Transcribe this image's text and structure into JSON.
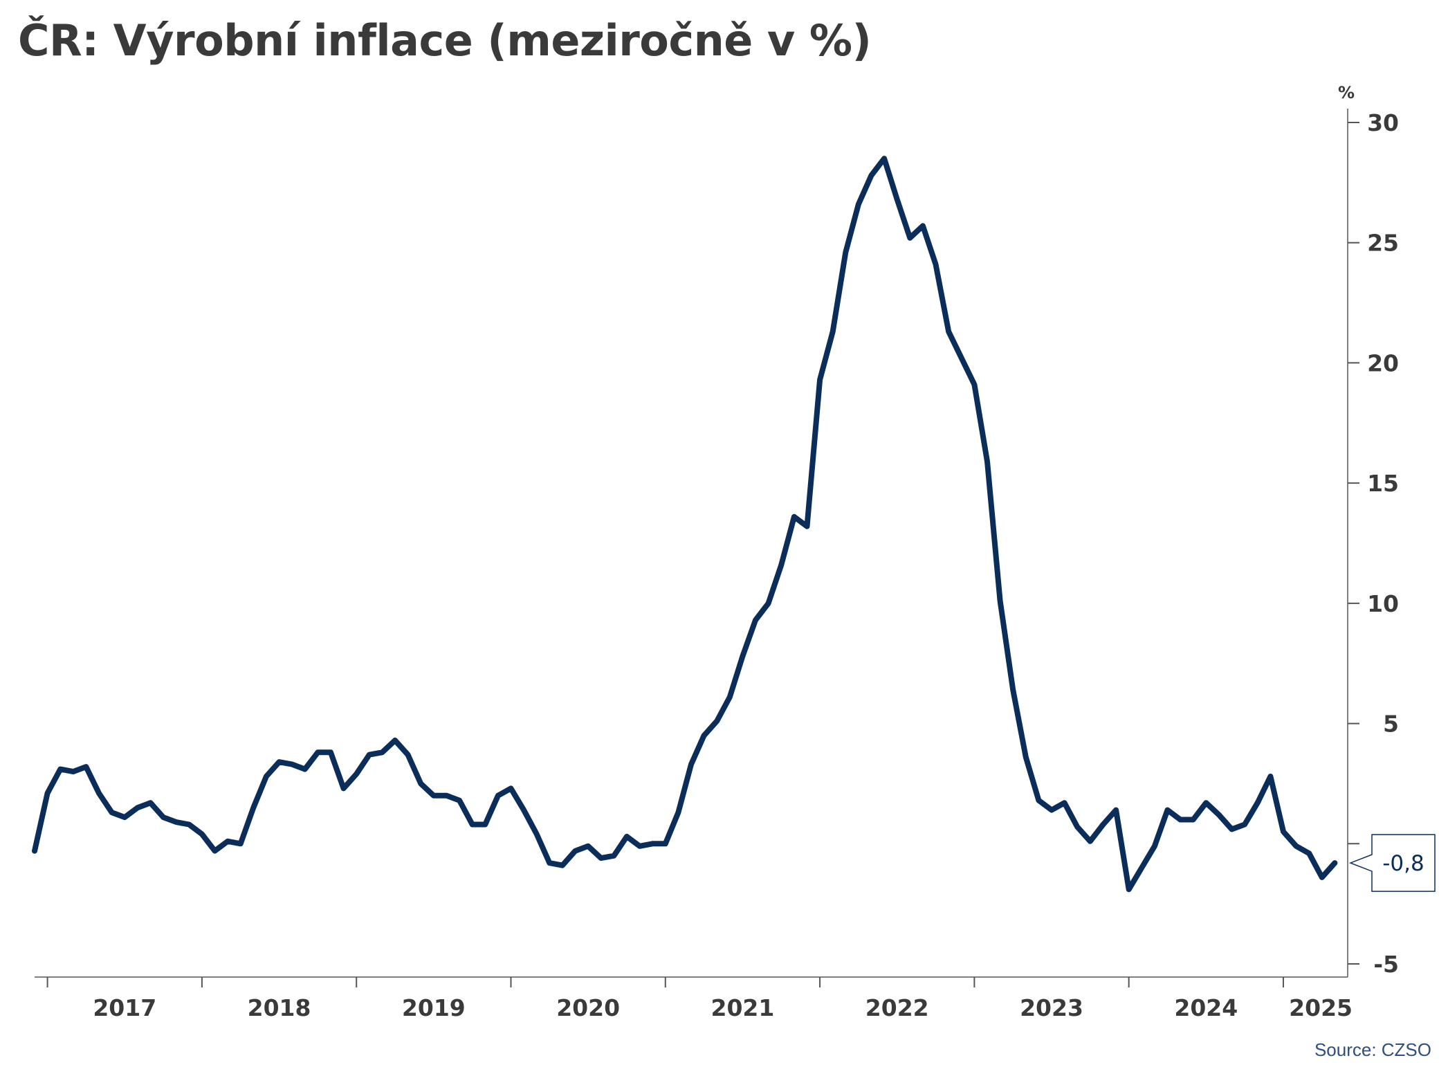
{
  "title": "ČR: Výrobní inflace (meziročně v %)",
  "source": "Source: CZSO",
  "colors": {
    "line": "#0b2d5a",
    "axis": "#555555",
    "text": "#3a3a3a",
    "source": "#2e4f7f"
  },
  "chart_data": {
    "type": "line",
    "title": "ČR: Výrobní inflace (meziročně v %)",
    "ylabel": "%",
    "xlabel": "",
    "y_axis_position": "right",
    "grid": false,
    "ylim": [
      -5,
      30
    ],
    "yticks": [
      -5,
      0,
      5,
      10,
      15,
      20,
      25,
      30
    ],
    "ytick_labels": [
      "-5",
      "0",
      "5",
      "10",
      "15",
      "20",
      "25",
      "30"
    ],
    "x_range": [
      "2016-12",
      "2025-06"
    ],
    "year_labels": [
      "2017",
      "2018",
      "2019",
      "2020",
      "2021",
      "2022",
      "2023",
      "2024",
      "2025"
    ],
    "last_value_label": "-0,8",
    "series": [
      {
        "x": [
          "2016-12",
          "2017-01",
          "2017-02",
          "2017-03",
          "2017-04",
          "2017-05",
          "2017-06",
          "2017-07",
          "2017-08",
          "2017-09",
          "2017-10",
          "2017-11",
          "2017-12",
          "2018-01",
          "2018-02",
          "2018-03",
          "2018-04",
          "2018-05",
          "2018-06",
          "2018-07",
          "2018-08",
          "2018-09",
          "2018-10",
          "2018-11",
          "2018-12",
          "2019-01",
          "2019-02",
          "2019-03",
          "2019-04",
          "2019-05",
          "2019-06",
          "2019-07",
          "2019-08",
          "2019-09",
          "2019-10",
          "2019-11",
          "2019-12",
          "2020-01",
          "2020-02",
          "2020-03",
          "2020-04",
          "2020-05",
          "2020-06",
          "2020-07",
          "2020-08",
          "2020-09",
          "2020-10",
          "2020-11",
          "2020-12",
          "2021-01",
          "2021-02",
          "2021-03",
          "2021-04",
          "2021-05",
          "2021-06",
          "2021-07",
          "2021-08",
          "2021-09",
          "2021-10",
          "2021-11",
          "2021-12",
          "2022-01",
          "2022-02",
          "2022-03",
          "2022-04",
          "2022-05",
          "2022-06",
          "2022-07",
          "2022-08",
          "2022-09",
          "2022-10",
          "2022-11",
          "2022-12",
          "2023-01",
          "2023-02",
          "2023-03",
          "2023-04",
          "2023-05",
          "2023-06",
          "2023-07",
          "2023-08",
          "2023-09",
          "2023-10",
          "2023-11",
          "2023-12",
          "2024-01",
          "2024-02",
          "2024-03",
          "2024-04",
          "2024-05",
          "2024-06",
          "2024-07",
          "2024-08",
          "2024-09",
          "2024-10",
          "2024-11",
          "2024-12",
          "2025-01",
          "2025-02",
          "2025-03",
          "2025-04",
          "2025-05"
        ],
        "values": [
          -0.3,
          2.1,
          3.1,
          3.0,
          3.2,
          2.1,
          1.3,
          1.1,
          1.5,
          1.7,
          1.1,
          0.9,
          0.8,
          0.4,
          -0.3,
          0.1,
          0.0,
          1.5,
          2.8,
          3.4,
          3.3,
          3.1,
          3.8,
          3.8,
          2.3,
          2.9,
          3.7,
          3.8,
          4.3,
          3.7,
          2.5,
          2.0,
          2.0,
          1.8,
          0.8,
          0.8,
          2.0,
          2.3,
          1.4,
          0.4,
          -0.8,
          -0.9,
          -0.3,
          -0.1,
          -0.6,
          -0.5,
          0.3,
          -0.1,
          0.0,
          0.0,
          1.3,
          3.3,
          4.5,
          5.1,
          6.1,
          7.8,
          9.3,
          10.0,
          11.6,
          13.6,
          13.2,
          19.3,
          21.3,
          24.6,
          26.6,
          27.8,
          28.5,
          26.8,
          25.2,
          25.7,
          24.1,
          21.3,
          20.2,
          19.1,
          15.9,
          10.1,
          6.4,
          3.6,
          1.8,
          1.4,
          1.7,
          0.7,
          0.1,
          0.8,
          1.4,
          -1.9,
          -1.0,
          -0.1,
          1.4,
          1.0,
          1.0,
          1.7,
          1.2,
          0.6,
          0.8,
          1.7,
          2.8,
          0.5,
          -0.1,
          -0.4,
          -1.4,
          -0.8
        ]
      }
    ]
  }
}
